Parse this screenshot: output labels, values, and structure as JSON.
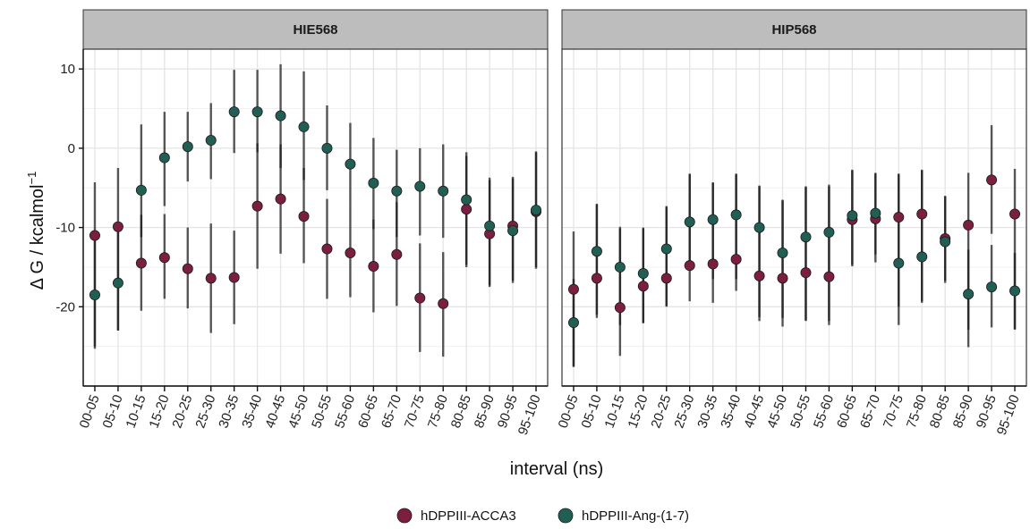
{
  "chart_data": {
    "type": "scatter",
    "subtype": "point-with-errorbars, faceted",
    "ylabel": "Δ G / kcalmol⁻¹",
    "ylabel_main": "Δ G / kcalmol",
    "ylabel_sup": "−1",
    "xlabel": "interval (ns)",
    "ylim": [
      -30,
      12.5
    ],
    "yticks": [
      10,
      0,
      -10,
      -20
    ],
    "ytick_labels": [
      "10",
      "0",
      "-10",
      "-20"
    ],
    "grid": true,
    "legend_position": "bottom",
    "categories": [
      "00-05",
      "05-10",
      "10-15",
      "15-20",
      "20-25",
      "25-30",
      "30-35",
      "35-40",
      "40-45",
      "45-50",
      "50-55",
      "55-60",
      "60-65",
      "65-70",
      "70-75",
      "75-80",
      "80-85",
      "85-90",
      "90-95",
      "95-100"
    ],
    "colors": {
      "hDPPIII-ACCA3": "#7b1e3f",
      "hDPPIII-Ang-(1-7)": "#215f55"
    },
    "legend": [
      "hDPPIII-ACCA3",
      "hDPPIII-Ang-(1-7)"
    ],
    "panels": [
      {
        "title": "HIE568",
        "series": [
          {
            "name": "hDPPIII-ACCA3",
            "values": [
              -11,
              -9.9,
              -14.5,
              -13.8,
              -15.2,
              -16.4,
              -16.3,
              -7.3,
              -6.4,
              -8.6,
              -12.7,
              -13.2,
              -14.9,
              -13.4,
              -18.9,
              -19.6,
              -7.7,
              -10.8,
              -9.8,
              -8
            ],
            "lower": [
              -25,
              -23,
              -20.5,
              -19,
              -20.2,
              -23.3,
              -22.2,
              -15.2,
              -13.3,
              -14.5,
              -19,
              -18.8,
              -20.7,
              -19.9,
              -25.7,
              -26.3,
              -15,
              -17.5,
              -17,
              -15
            ],
            "upper": [
              -4.3,
              -2.5,
              -8.4,
              -8.3,
              -10,
              -9.5,
              -10.4,
              0.6,
              0.5,
              -2.5,
              -6.4,
              -7.3,
              -9,
              -6.8,
              -12,
              -13.1,
              -0.5,
              -4,
              -3.8,
              -0.5
            ]
          },
          {
            "name": "hDPPIII-Ang-(1-7)",
            "values": [
              -18.5,
              -17,
              -5.3,
              -1.2,
              0.2,
              1,
              4.6,
              4.6,
              4.1,
              2.7,
              0,
              -2,
              -4.4,
              -5.4,
              -4.8,
              -5.4,
              -6.5,
              -9.8,
              -10.4,
              -7.8
            ],
            "lower": [
              -25.3,
              -23,
              -11.2,
              -7.3,
              -4.2,
              -3.9,
              -0.6,
              -0.5,
              -2.5,
              -4,
              -5.3,
              -7.3,
              -10.2,
              -11.2,
              -11,
              -11.3,
              -14.7,
              -17.3,
              -16.7,
              -15.2
            ],
            "upper": [
              -11.3,
              -10.6,
              3,
              4.6,
              4.6,
              5.7,
              9.9,
              9.9,
              10.6,
              9.7,
              5.4,
              3.2,
              1.3,
              -0.2,
              0,
              0.5,
              -1,
              -3.7,
              -3.6,
              -0.4
            ]
          }
        ]
      },
      {
        "title": "HIP568",
        "series": [
          {
            "name": "hDPPIII-ACCA3",
            "values": [
              -17.8,
              -16.4,
              -20.1,
              -17.4,
              -16.4,
              -14.8,
              -14.6,
              -14,
              -16.1,
              -16.4,
              -15.7,
              -16.2,
              -9,
              -8.9,
              -8.7,
              -8.3,
              -11.4,
              -9.7,
              -4,
              -8.3
            ],
            "lower": [
              -27.5,
              -21.4,
              -26.2,
              -22.1,
              -19.9,
              -19.3,
              -19.5,
              -18,
              -21.8,
              -21.4,
              -21.8,
              -22.3,
              -14.9,
              -14.4,
              -22.3,
              -19.3,
              -16.7,
              -25.1,
              -10.8,
              -22.8
            ],
            "upper": [
              -10.5,
              -7.1,
              -10.1,
              -10.1,
              -7.4,
              -3.3,
              -4.4,
              -3.3,
              -4.8,
              -6.6,
              -4.9,
              -4.8,
              -2.8,
              -3.2,
              -3.3,
              -2.8,
              -6.1,
              -3.1,
              2.9,
              -2.6
            ]
          },
          {
            "name": "hDPPIII-Ang-(1-7)",
            "values": [
              -22,
              -13,
              -15,
              -15.8,
              -12.7,
              -9.3,
              -9,
              -8.4,
              -10,
              -13.2,
              -11.2,
              -10.6,
              -8.5,
              -8.2,
              -14.5,
              -13.7,
              -11.8,
              -18.4,
              -17.5,
              -18
            ],
            "lower": [
              -27.6,
              -21,
              -22.3,
              -22,
              -20,
              -15,
              -16.5,
              -16.5,
              -21.3,
              -22.5,
              -21.7,
              -21.8,
              -14.7,
              -13.4,
              -20,
              -19.5,
              -17,
              -22.9,
              -22.6,
              -22.9
            ],
            "upper": [
              -16.5,
              -7,
              -9.9,
              -10,
              -7.3,
              -3.2,
              -4.3,
              -3.2,
              -4.7,
              -6.5,
              -4.8,
              -4.6,
              -2.7,
              -3.1,
              -3.2,
              -2.7,
              -6,
              -12.8,
              -12.2,
              -13.2
            ]
          }
        ]
      }
    ]
  }
}
